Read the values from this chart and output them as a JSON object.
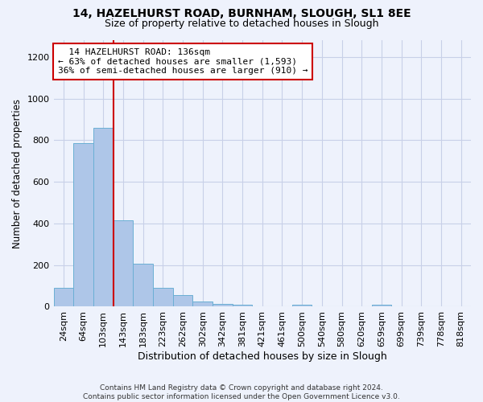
{
  "title1": "14, HAZELHURST ROAD, BURNHAM, SLOUGH, SL1 8EE",
  "title2": "Size of property relative to detached houses in Slough",
  "xlabel": "Distribution of detached houses by size in Slough",
  "ylabel": "Number of detached properties",
  "categories": [
    "24sqm",
    "64sqm",
    "103sqm",
    "143sqm",
    "183sqm",
    "223sqm",
    "262sqm",
    "302sqm",
    "342sqm",
    "381sqm",
    "421sqm",
    "461sqm",
    "500sqm",
    "540sqm",
    "580sqm",
    "620sqm",
    "659sqm",
    "699sqm",
    "739sqm",
    "778sqm",
    "818sqm"
  ],
  "values": [
    90,
    785,
    860,
    415,
    205,
    90,
    55,
    25,
    15,
    10,
    0,
    0,
    10,
    0,
    0,
    0,
    10,
    0,
    0,
    0,
    0
  ],
  "bar_color": "#aec6e8",
  "bar_edge_color": "#6aafd4",
  "subject_line_color": "#cc0000",
  "annotation_text": "  14 HAZELHURST ROAD: 136sqm\n← 63% of detached houses are smaller (1,593)\n36% of semi-detached houses are larger (910) →",
  "annotation_box_color": "#ffffff",
  "annotation_box_edge_color": "#cc0000",
  "background_color": "#eef2fc",
  "grid_color": "#c8d0e8",
  "ylim": [
    0,
    1280
  ],
  "yticks": [
    0,
    200,
    400,
    600,
    800,
    1000,
    1200
  ],
  "footer": "Contains HM Land Registry data © Crown copyright and database right 2024.\nContains public sector information licensed under the Open Government Licence v3.0."
}
